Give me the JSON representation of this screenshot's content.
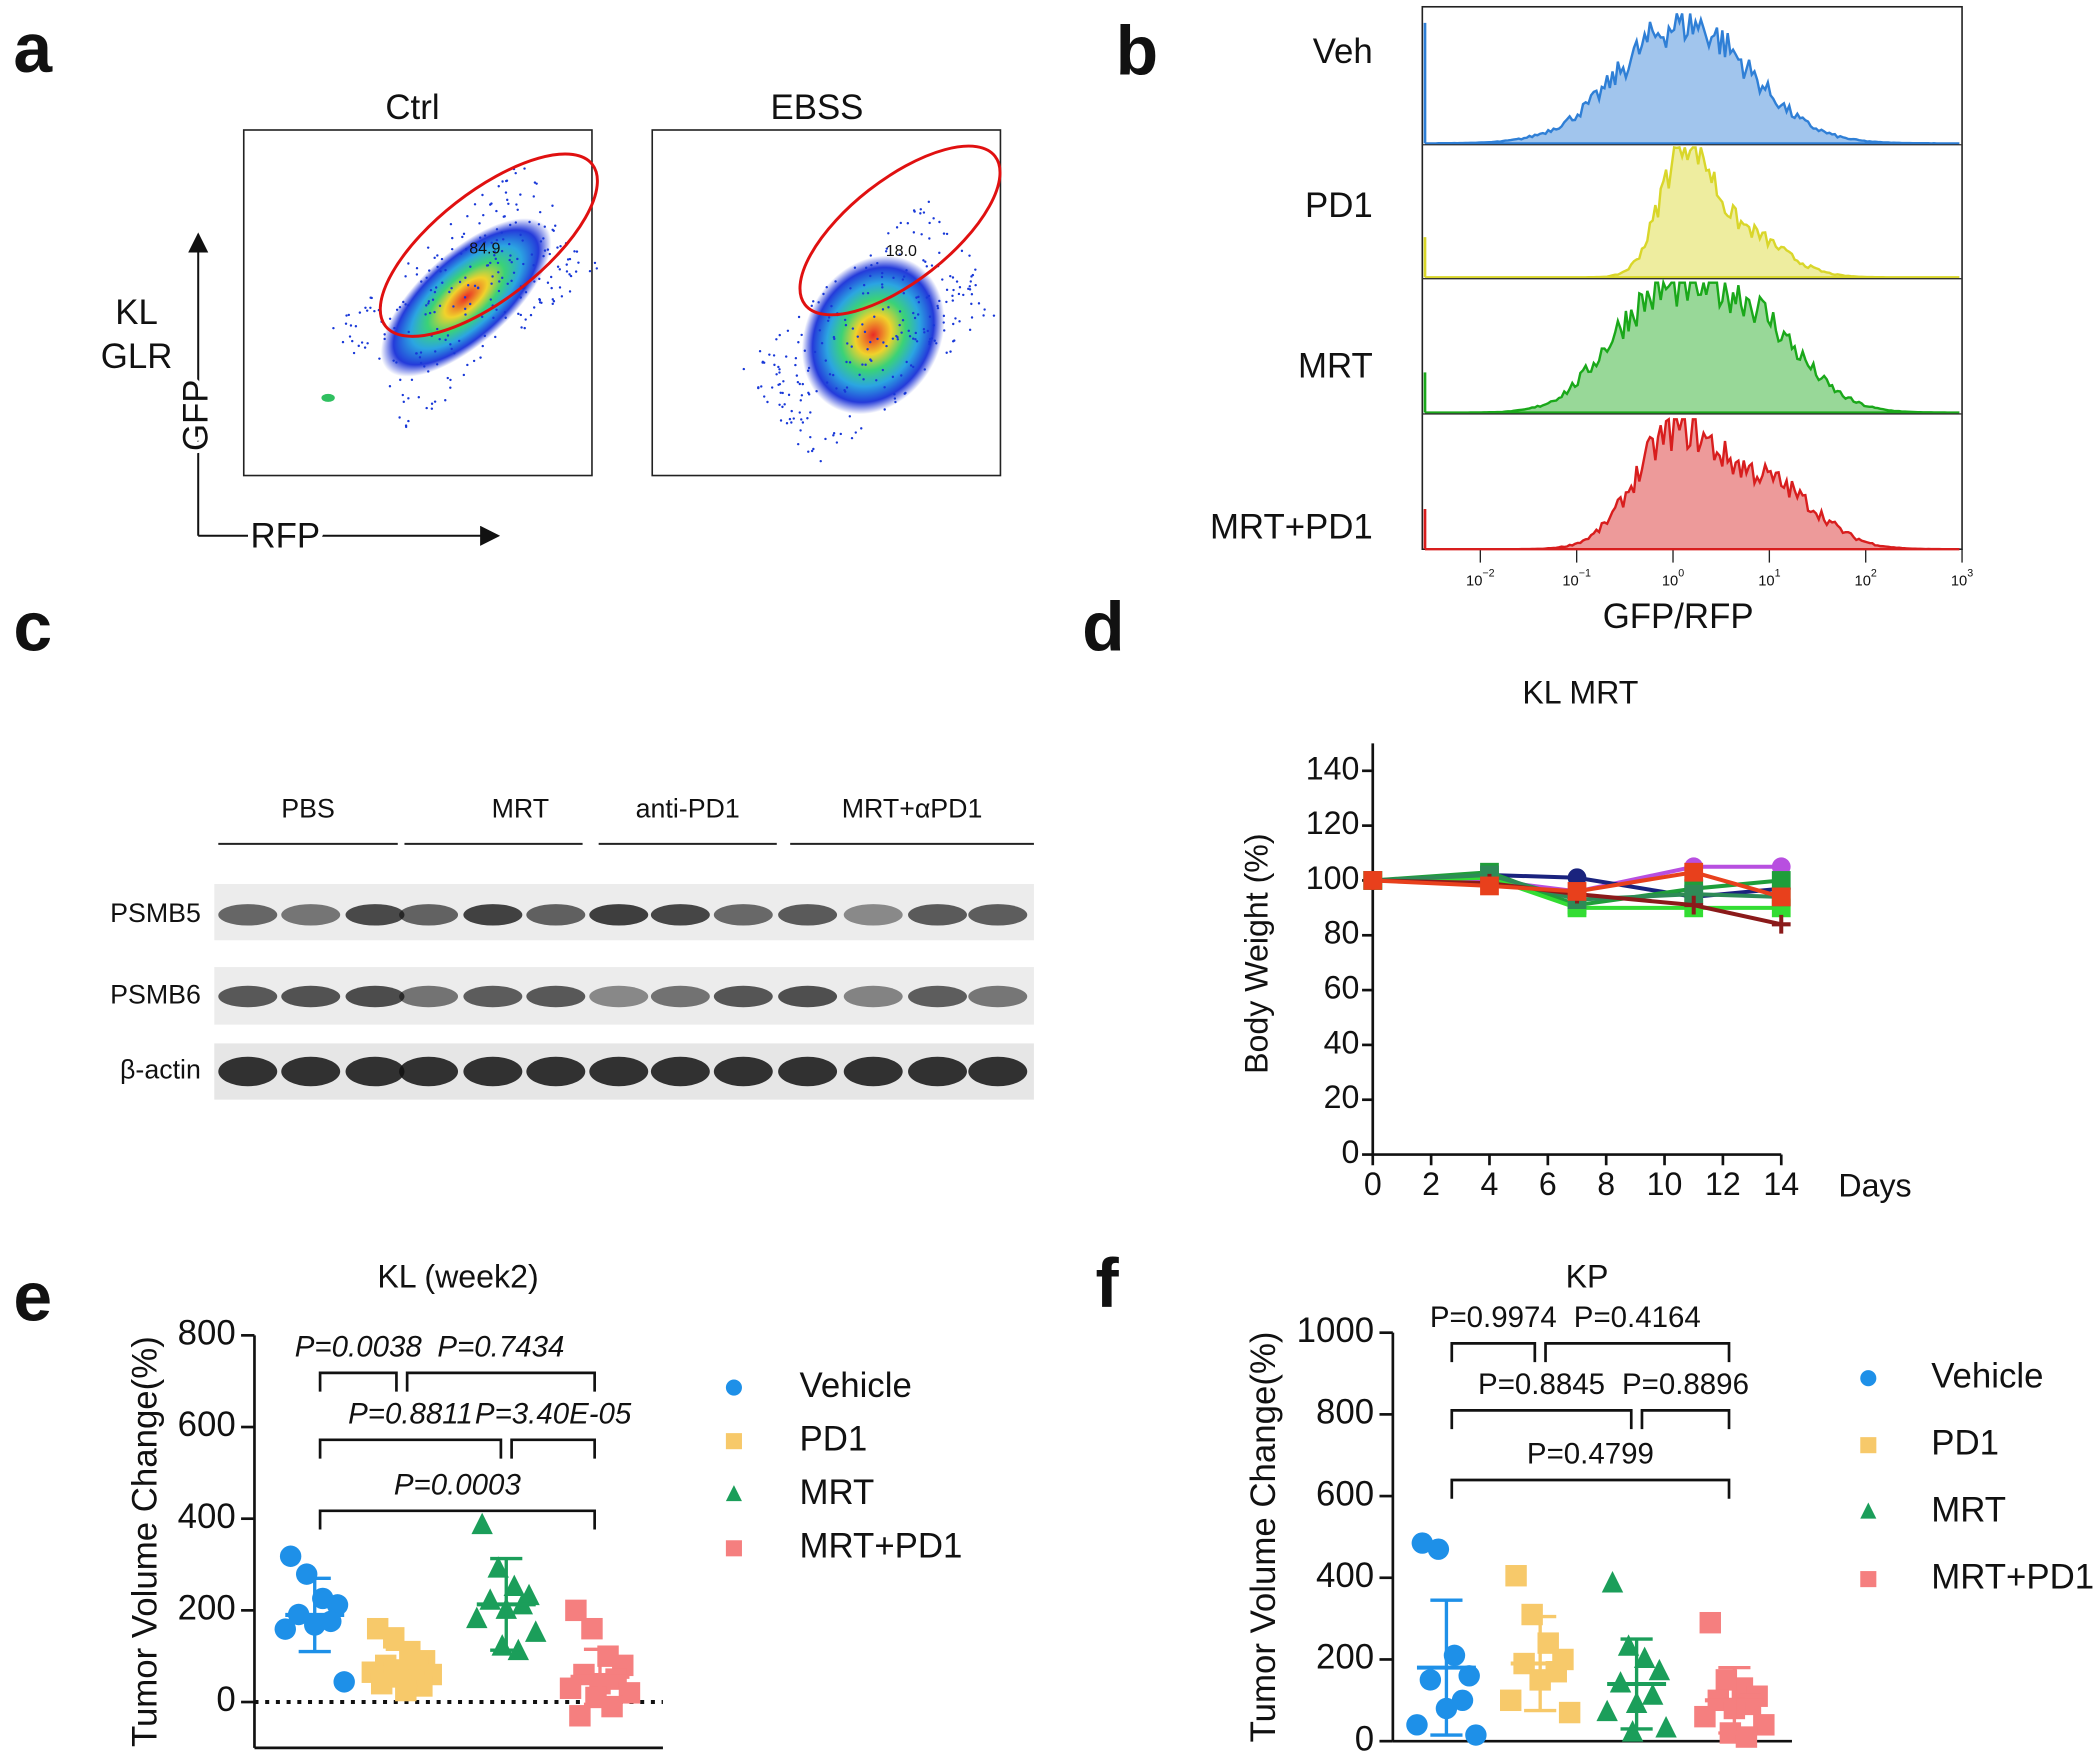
{
  "panel_labels": [
    "a",
    "b",
    "c",
    "d",
    "e",
    "f"
  ],
  "flow": {
    "y_label_lines": [
      "KL",
      "GLR"
    ],
    "y_axis": "GFP",
    "x_axis": "RFP",
    "plots": [
      {
        "title": "Ctrl",
        "gate": "84.9"
      },
      {
        "title": "EBSS",
        "gate": "18.0"
      }
    ]
  },
  "histogram": {
    "x_label": "GFP/RFP",
    "log": true,
    "xlim": [
      0.0025,
      1000
    ],
    "xticks": [
      {
        "value": 0.01,
        "label": "10",
        "exp": "−2"
      },
      {
        "value": 0.1,
        "label": "10",
        "exp": "−1"
      },
      {
        "value": 1,
        "label": "10",
        "exp": "0"
      },
      {
        "value": 10,
        "label": "10",
        "exp": "1"
      },
      {
        "value": 100,
        "label": "10",
        "exp": "2"
      },
      {
        "value": 1000,
        "label": "10",
        "exp": "3"
      }
    ],
    "series": [
      {
        "name": "Veh",
        "color": "#2f7fd6"
      },
      {
        "name": "PD1",
        "color": "#d9d62a"
      },
      {
        "name": "MRT",
        "color": "#1aa81a"
      },
      {
        "name": "MRT+PD1",
        "color": "#d81e1e"
      }
    ]
  },
  "blot": {
    "groups": [
      "PBS",
      "MRT",
      "anti-PD1",
      "MRT+αPD1"
    ],
    "rows": [
      "PSMB5",
      "PSMB6",
      "β-actin"
    ]
  },
  "chart_data": [
    {
      "type": "line",
      "title": "KL MRT",
      "x_label": "Days",
      "y_label": "Body Weight (%)",
      "x": [
        0,
        4,
        7,
        11,
        14
      ],
      "xlim": [
        0,
        14
      ],
      "xticks": [
        0,
        2,
        4,
        6,
        8,
        10,
        12,
        14
      ],
      "ylim": [
        0,
        150
      ],
      "yticks": [
        0,
        20,
        40,
        60,
        80,
        100,
        120,
        140
      ],
      "series": [
        {
          "color": "#b84fe0",
          "marker": "circle",
          "values": [
            100,
            100,
            96,
            105,
            105
          ]
        },
        {
          "color": "#1a237e",
          "marker": "circle",
          "values": [
            100,
            102,
            101,
            94,
            97
          ]
        },
        {
          "color": "#1f9e3a",
          "marker": "square",
          "values": [
            100,
            103,
            91,
            97,
            100
          ]
        },
        {
          "color": "#33dd33",
          "marker": "square",
          "values": [
            100,
            101,
            90,
            90,
            90
          ]
        },
        {
          "color": "#2e8b57",
          "marker": "square",
          "values": [
            100,
            102,
            93,
            95,
            94
          ]
        },
        {
          "color": "#8b1a1a",
          "marker": "plus",
          "values": [
            100,
            99,
            95,
            91,
            84
          ]
        },
        {
          "color": "#e8401c",
          "marker": "square",
          "values": [
            100,
            98,
            96,
            103,
            94
          ]
        }
      ]
    },
    {
      "type": "dot",
      "title": "KL (week2)",
      "y_label": "Tumor Volume Change(%)",
      "ylim": [
        -100,
        800
      ],
      "yticks": [
        0,
        200,
        400,
        600,
        800
      ],
      "zero_line": true,
      "series": [
        {
          "name": "Vehicle",
          "color": "#1e90e8",
          "marker": "circle",
          "values": [
            318,
            279,
            226,
            212,
            191,
            176,
            168,
            159,
            44
          ],
          "mean": 190,
          "sd": 80
        },
        {
          "name": "PD1",
          "color": "#f7c96a",
          "marker": "square",
          "values": [
            160,
            140,
            110,
            90,
            80,
            75,
            70,
            65,
            60,
            55,
            45,
            40,
            35,
            25
          ],
          "mean": 75,
          "sd": 40
        },
        {
          "name": "MRT",
          "color": "#1b9e5a",
          "marker": "triangle",
          "values": [
            385,
            290,
            250,
            230,
            220,
            210,
            200,
            180,
            150,
            120,
            110
          ],
          "mean": 213,
          "sd": 100
        },
        {
          "name": "MRT+PD1",
          "color": "#f57f7f",
          "marker": "square",
          "values": [
            200,
            160,
            100,
            80,
            60,
            50,
            40,
            30,
            20,
            10,
            -10,
            -30
          ],
          "mean": 55,
          "sd": 60
        }
      ],
      "brackets": [
        {
          "label": "P=0.0038",
          "pair": [
            0,
            1
          ]
        },
        {
          "label": "P=0.7434",
          "pair": [
            1,
            3
          ]
        },
        {
          "label": "P=0.8811",
          "pair": [
            0,
            2
          ]
        },
        {
          "label": "P=3.40E-05",
          "pair": [
            2,
            3
          ]
        },
        {
          "label": "P=0.0003",
          "pair": [
            0,
            3
          ]
        }
      ]
    },
    {
      "type": "dot",
      "title": "KP",
      "y_label": "Tumor Volume Change(%)",
      "ylim": [
        0,
        1000
      ],
      "yticks": [
        0,
        200,
        400,
        600,
        800,
        1000
      ],
      "zero_line": false,
      "series": [
        {
          "name": "Vehicle",
          "color": "#1e90e8",
          "marker": "circle",
          "values": [
            485,
            470,
            210,
            160,
            150,
            100,
            80,
            40,
            15
          ],
          "mean": 180,
          "sd": 165
        },
        {
          "name": "PD1",
          "color": "#f7c96a",
          "marker": "square",
          "values": [
            405,
            310,
            240,
            200,
            190,
            170,
            150,
            100,
            70
          ],
          "mean": 190,
          "sd": 115
        },
        {
          "name": "MRT",
          "color": "#1b9e5a",
          "marker": "triangle",
          "values": [
            385,
            230,
            200,
            170,
            140,
            110,
            90,
            70,
            30,
            20
          ],
          "mean": 140,
          "sd": 110
        },
        {
          "name": "MRT+PD1",
          "color": "#f57f7f",
          "marker": "square",
          "values": [
            290,
            150,
            130,
            110,
            100,
            90,
            80,
            60,
            40,
            20,
            10
          ],
          "mean": 100,
          "sd": 80
        }
      ],
      "brackets": [
        {
          "label": "P=0.9974",
          "pair": [
            0,
            1
          ]
        },
        {
          "label": "P=0.4164",
          "pair": [
            1,
            3
          ]
        },
        {
          "label": "P=0.8845",
          "pair": [
            0,
            2
          ]
        },
        {
          "label": "P=0.8896",
          "pair": [
            2,
            3
          ]
        },
        {
          "label": "P=0.4799",
          "pair": [
            0,
            3
          ]
        }
      ]
    }
  ]
}
